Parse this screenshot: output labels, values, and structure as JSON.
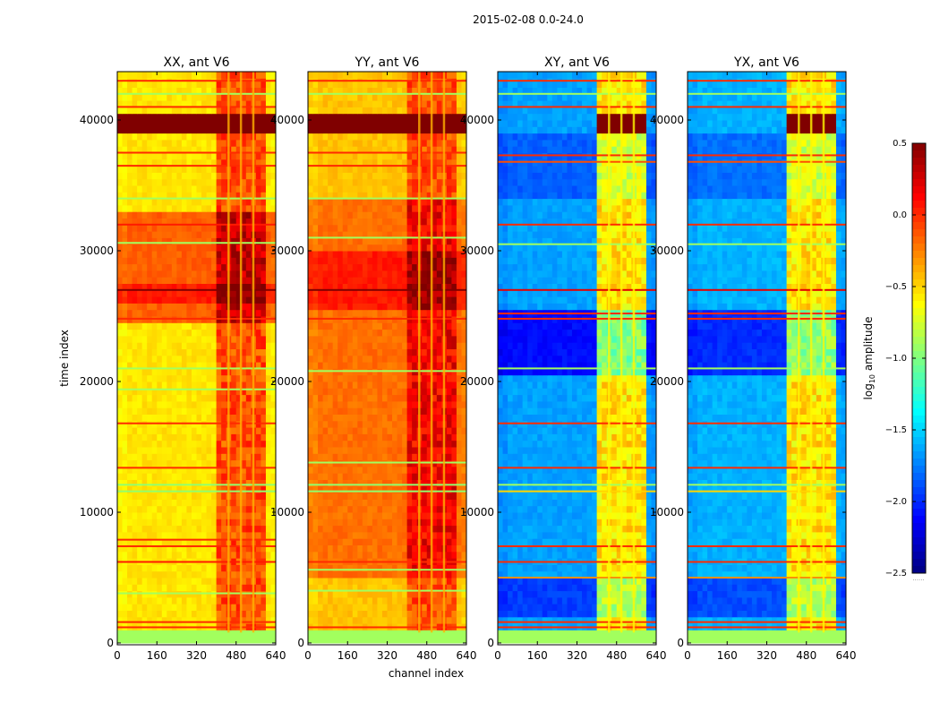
{
  "chart_data": {
    "type": "heatmap",
    "title": "2015-02-08 0.0-24.0",
    "xlabel": "channel index",
    "ylabel": "time index",
    "xlim": [
      0,
      640
    ],
    "ylim": [
      0,
      43700
    ],
    "xticks": [
      0,
      160,
      320,
      480,
      640
    ],
    "yticks": [
      0,
      10000,
      20000,
      30000,
      40000
    ],
    "colorbar": {
      "label_prefix": "log",
      "label_sub": "10",
      "label_suffix": " amplitude",
      "colormap": "jet",
      "range": [
        -2.5,
        0.5
      ],
      "ticks": [
        "0.5",
        "0.0",
        "−0.5",
        "−1.0",
        "−1.5",
        "−2.0",
        "−2.5"
      ],
      "tick_values": [
        0.5,
        0.0,
        -0.5,
        -1.0,
        -1.5,
        -2.0,
        -2.5
      ],
      "extra_label": "......"
    },
    "rfi_channels": [
      400,
      600
    ],
    "gap_channels": [
      445,
      495,
      545
    ],
    "panels": [
      {
        "title": "XX, ant V6",
        "base": -0.55,
        "rfi_offset": 0.45,
        "segments": [
          {
            "t": [
              0,
              800
            ],
            "v": -0.9,
            "flat": true
          },
          {
            "t": [
              24500,
              33000
            ],
            "v": -0.15
          },
          {
            "t": [
              26000,
              27500
            ],
            "v": 0.05
          },
          {
            "t": [
              39000,
              40600
            ],
            "v": 0.5,
            "flat": true
          }
        ],
        "stripes": [
          {
            "t": 1200,
            "v": 0.0
          },
          {
            "t": 1600,
            "v": 0.0
          },
          {
            "t": 3800,
            "v": -0.9
          },
          {
            "t": 6200,
            "v": 0.05
          },
          {
            "t": 7400,
            "v": 0.0
          },
          {
            "t": 7900,
            "v": 0.0
          },
          {
            "t": 11600,
            "v": -0.95
          },
          {
            "t": 12100,
            "v": -0.95
          },
          {
            "t": 13400,
            "v": 0.0
          },
          {
            "t": 16800,
            "v": 0.0
          },
          {
            "t": 19400,
            "v": -0.9
          },
          {
            "t": 21000,
            "v": -0.9
          },
          {
            "t": 24800,
            "v": 0.0
          },
          {
            "t": 27000,
            "v": 0.5
          },
          {
            "t": 30600,
            "v": -0.9
          },
          {
            "t": 32000,
            "v": 0.05
          },
          {
            "t": 34000,
            "v": -0.9
          },
          {
            "t": 36500,
            "v": 0.0
          },
          {
            "t": 37500,
            "v": 0.0
          },
          {
            "t": 41000,
            "v": 0.0
          },
          {
            "t": 42000,
            "v": -0.9
          },
          {
            "t": 43000,
            "v": 0.0
          }
        ]
      },
      {
        "title": "YY, ant V6",
        "base": -0.45,
        "rfi_offset": 0.35,
        "segments": [
          {
            "t": [
              0,
              800
            ],
            "v": -0.9,
            "flat": true
          },
          {
            "t": [
              5000,
              34000
            ],
            "v": -0.2
          },
          {
            "t": [
              25500,
              30000
            ],
            "v": 0.05
          },
          {
            "t": [
              39000,
              40600
            ],
            "v": 0.5,
            "flat": true
          }
        ],
        "stripes": [
          {
            "t": 1200,
            "v": 0.0
          },
          {
            "t": 4000,
            "v": -0.9
          },
          {
            "t": 5600,
            "v": -0.9
          },
          {
            "t": 6200,
            "v": 0.0
          },
          {
            "t": 11600,
            "v": -0.95
          },
          {
            "t": 12100,
            "v": -0.95
          },
          {
            "t": 13800,
            "v": -0.9
          },
          {
            "t": 20800,
            "v": -0.9
          },
          {
            "t": 24800,
            "v": 0.0
          },
          {
            "t": 27000,
            "v": 0.5
          },
          {
            "t": 31000,
            "v": -0.9
          },
          {
            "t": 34000,
            "v": -0.9
          },
          {
            "t": 36500,
            "v": 0.0
          },
          {
            "t": 37500,
            "v": 0.0
          },
          {
            "t": 42000,
            "v": -0.9
          },
          {
            "t": 43000,
            "v": 0.0
          }
        ]
      },
      {
        "title": "XY, ant V6",
        "base": -1.65,
        "rfi_offset": 1.1,
        "segments": [
          {
            "t": [
              0,
              800
            ],
            "v": -0.9,
            "flat": true
          },
          {
            "t": [
              20500,
              25500
            ],
            "v": -2.1
          },
          {
            "t": [
              34000,
              39000
            ],
            "v": -1.85
          },
          {
            "t": [
              2000,
              5000
            ],
            "v": -1.95
          },
          {
            "t": [
              39000,
              40600
            ],
            "v": 0.5,
            "rfi_only": true
          }
        ],
        "stripes": [
          {
            "t": 1200,
            "v": 0.0
          },
          {
            "t": 1600,
            "v": 0.0
          },
          {
            "t": 5000,
            "v": -0.3
          },
          {
            "t": 6200,
            "v": 0.0
          },
          {
            "t": 7400,
            "v": 0.0
          },
          {
            "t": 11600,
            "v": -0.5
          },
          {
            "t": 12100,
            "v": -0.9
          },
          {
            "t": 13400,
            "v": 0.0
          },
          {
            "t": 16800,
            "v": 0.0
          },
          {
            "t": 21000,
            "v": -0.9
          },
          {
            "t": 24800,
            "v": 0.0
          },
          {
            "t": 25200,
            "v": 0.0
          },
          {
            "t": 27000,
            "v": 0.2
          },
          {
            "t": 30500,
            "v": -0.9
          },
          {
            "t": 32000,
            "v": 0.0
          },
          {
            "t": 36800,
            "v": -0.1
          },
          {
            "t": 37300,
            "v": 0.0
          },
          {
            "t": 41000,
            "v": 0.0
          },
          {
            "t": 42000,
            "v": -0.9
          },
          {
            "t": 43000,
            "v": 0.0
          }
        ]
      },
      {
        "title": "YX, ant V6",
        "base": -1.6,
        "rfi_offset": 1.05,
        "segments": [
          {
            "t": [
              0,
              800
            ],
            "v": -0.9,
            "flat": true
          },
          {
            "t": [
              20500,
              25500
            ],
            "v": -2.0
          },
          {
            "t": [
              34000,
              39000
            ],
            "v": -1.8
          },
          {
            "t": [
              2000,
              5000
            ],
            "v": -1.9
          },
          {
            "t": [
              39000,
              40600
            ],
            "v": 0.5,
            "rfi_only": true
          }
        ],
        "stripes": [
          {
            "t": 1200,
            "v": 0.0
          },
          {
            "t": 1600,
            "v": 0.0
          },
          {
            "t": 5000,
            "v": -0.3
          },
          {
            "t": 6200,
            "v": 0.0
          },
          {
            "t": 7400,
            "v": 0.0
          },
          {
            "t": 11600,
            "v": -0.5
          },
          {
            "t": 12100,
            "v": -0.9
          },
          {
            "t": 13400,
            "v": 0.0
          },
          {
            "t": 16800,
            "v": 0.0
          },
          {
            "t": 21000,
            "v": -0.9
          },
          {
            "t": 24800,
            "v": 0.0
          },
          {
            "t": 25200,
            "v": 0.0
          },
          {
            "t": 27000,
            "v": 0.2
          },
          {
            "t": 30500,
            "v": -0.9
          },
          {
            "t": 32000,
            "v": 0.0
          },
          {
            "t": 36800,
            "v": -0.1
          },
          {
            "t": 37300,
            "v": 0.0
          },
          {
            "t": 41000,
            "v": 0.0
          },
          {
            "t": 42000,
            "v": -0.9
          },
          {
            "t": 43000,
            "v": 0.0
          }
        ]
      }
    ]
  }
}
